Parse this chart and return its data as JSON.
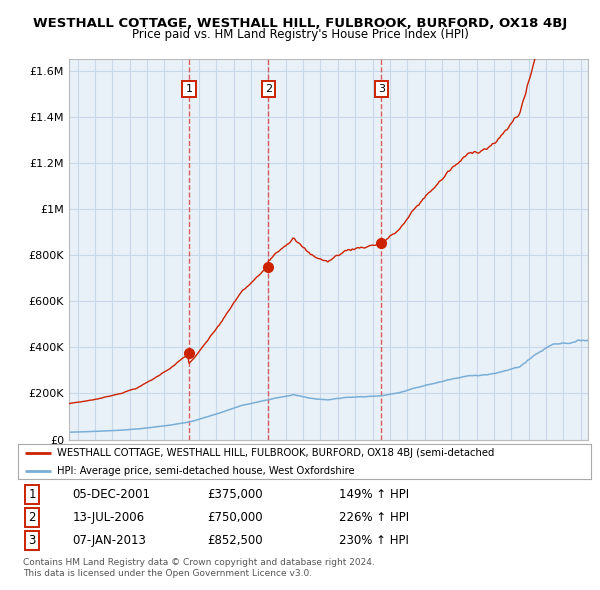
{
  "title": "WESTHALL COTTAGE, WESTHALL HILL, FULBROOK, BURFORD, OX18 4BJ",
  "subtitle": "Price paid vs. HM Land Registry's House Price Index (HPI)",
  "ylim": [
    0,
    1650000
  ],
  "yticks": [
    0,
    200000,
    400000,
    600000,
    800000,
    1000000,
    1200000,
    1400000,
    1600000
  ],
  "ytick_labels": [
    "£0",
    "£200K",
    "£400K",
    "£600K",
    "£800K",
    "£1M",
    "£1.2M",
    "£1.4M",
    "£1.6M"
  ],
  "sale_dates": [
    "2001-12-05",
    "2006-07-13",
    "2013-01-07"
  ],
  "sale_prices": [
    375000,
    750000,
    852500
  ],
  "sale_labels": [
    "1",
    "2",
    "3"
  ],
  "legend_red": "WESTHALL COTTAGE, WESTHALL HILL, FULBROOK, BURFORD, OX18 4BJ (semi-detached",
  "legend_blue": "HPI: Average price, semi-detached house, West Oxfordshire",
  "table_rows": [
    [
      "1",
      "05-DEC-2001",
      "£375,000",
      "149% ↑ HPI"
    ],
    [
      "2",
      "13-JUL-2006",
      "£750,000",
      "226% ↑ HPI"
    ],
    [
      "3",
      "07-JAN-2013",
      "£852,500",
      "230% ↑ HPI"
    ]
  ],
  "footnote1": "Contains HM Land Registry data © Crown copyright and database right 2024.",
  "footnote2": "This data is licensed under the Open Government Licence v3.0.",
  "bg_color": "#e8f0f8",
  "red_color": "#cc2200",
  "blue_color": "#7aaed6",
  "grid_color": "#c8d8e8",
  "vline_color": "#dd4444"
}
